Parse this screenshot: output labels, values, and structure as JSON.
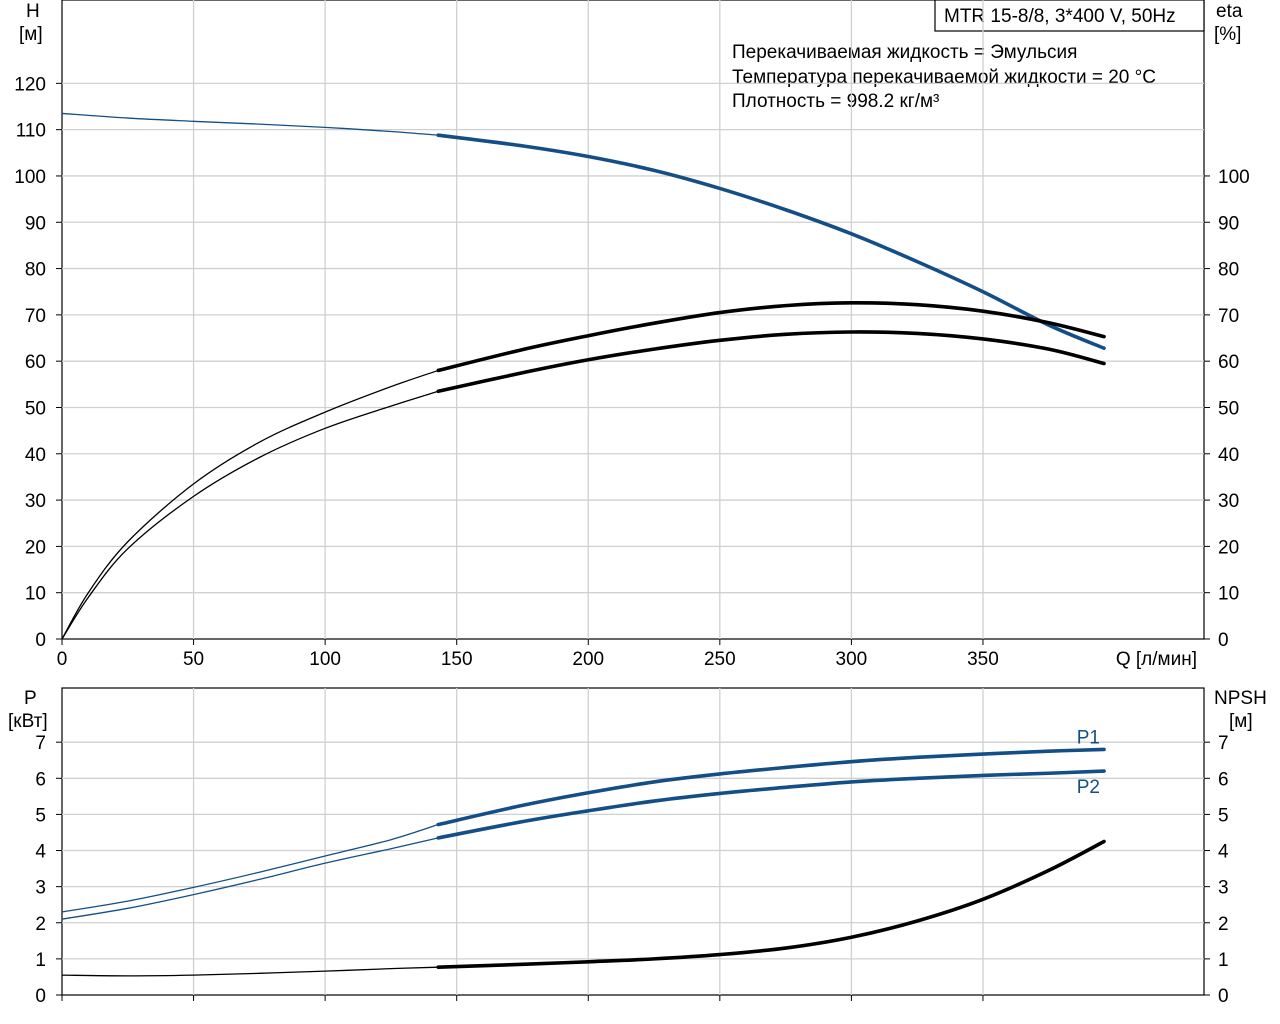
{
  "header": {
    "title": "MTR 15-8/8, 3*400 V, 50Hz",
    "info": [
      "Перекачиваемая жидкость = Эмульсия",
      "Температура перекачиваемой жидкости = 20 °C",
      "Плотность = 998.2 кг/м³"
    ]
  },
  "colors": {
    "blue": "#134f86",
    "black": "#000000",
    "grid": "#d0d0d0"
  },
  "chart_data": [
    {
      "type": "line",
      "xlabel": "Q [л/мин]",
      "ylabel_left": [
        "H",
        "[м]"
      ],
      "ylabel_right": [
        "eta",
        "[%]"
      ],
      "xlim": [
        0,
        434
      ],
      "ylim_left": [
        0,
        138
      ],
      "ylim_right": [
        0,
        138
      ],
      "x_ticks": [
        0,
        50,
        100,
        150,
        200,
        250,
        300,
        350
      ],
      "y_ticks_left": [
        0,
        10,
        20,
        30,
        40,
        50,
        60,
        70,
        80,
        90,
        100,
        110,
        120
      ],
      "y_ticks_right": [
        0,
        10,
        20,
        30,
        40,
        50,
        60,
        70,
        80,
        90,
        100
      ],
      "grid": true,
      "series": [
        {
          "color": "#134f86",
          "axis": "left",
          "operating_range_start": 143,
          "points": [
            [
              0,
              113.5
            ],
            [
              25,
              112.5
            ],
            [
              50,
              111.8
            ],
            [
              75,
              111.2
            ],
            [
              100,
              110.5
            ],
            [
              125,
              109.6
            ],
            [
              143,
              108.8
            ],
            [
              175,
              106.5
            ],
            [
              200,
              104.2
            ],
            [
              225,
              101.2
            ],
            [
              250,
              97.3
            ],
            [
              275,
              92.7
            ],
            [
              300,
              87.5
            ],
            [
              325,
              81.5
            ],
            [
              350,
              75
            ],
            [
              375,
              67.8
            ],
            [
              396,
              62.8
            ]
          ]
        },
        {
          "color": "#000000",
          "axis": "right",
          "operating_range_start": 143,
          "points": [
            [
              0,
              0
            ],
            [
              10,
              10
            ],
            [
              25,
              21
            ],
            [
              50,
              33.5
            ],
            [
              75,
              42.5
            ],
            [
              100,
              49
            ],
            [
              125,
              54.5
            ],
            [
              143,
              58
            ],
            [
              175,
              62.5
            ],
            [
              200,
              65.5
            ],
            [
              225,
              68.2
            ],
            [
              250,
              70.5
            ],
            [
              275,
              72
            ],
            [
              300,
              72.6
            ],
            [
              325,
              72.2
            ],
            [
              350,
              70.8
            ],
            [
              375,
              68.3
            ],
            [
              396,
              65.3
            ]
          ]
        },
        {
          "color": "#000000",
          "axis": "right",
          "operating_range_start": 143,
          "points": [
            [
              0,
              0
            ],
            [
              10,
              9
            ],
            [
              25,
              19.5
            ],
            [
              50,
              30.8
            ],
            [
              75,
              39.2
            ],
            [
              100,
              45.5
            ],
            [
              125,
              50.3
            ],
            [
              143,
              53.5
            ],
            [
              175,
              57.5
            ],
            [
              200,
              60.3
            ],
            [
              225,
              62.6
            ],
            [
              250,
              64.5
            ],
            [
              275,
              65.8
            ],
            [
              300,
              66.3
            ],
            [
              325,
              66
            ],
            [
              350,
              64.8
            ],
            [
              375,
              62.6
            ],
            [
              396,
              59.5
            ]
          ]
        }
      ]
    },
    {
      "type": "line",
      "xlabel": "",
      "ylabel_left": [
        "P",
        "[кВт]"
      ],
      "ylabel_right": [
        "NPSH",
        "[м]"
      ],
      "xlim": [
        0,
        434
      ],
      "ylim_left": [
        0,
        8.5
      ],
      "ylim_right": [
        0,
        8.5
      ],
      "y_ticks_left": [
        0,
        1,
        2,
        3,
        4,
        5,
        6,
        7
      ],
      "y_ticks_right": [
        0,
        1,
        2,
        3,
        4,
        5,
        6,
        7
      ],
      "grid": true,
      "series": [
        {
          "name": "P1",
          "color": "#134f86",
          "axis": "left",
          "operating_range_start": 143,
          "points": [
            [
              0,
              2.3
            ],
            [
              25,
              2.6
            ],
            [
              50,
              2.98
            ],
            [
              75,
              3.4
            ],
            [
              100,
              3.85
            ],
            [
              125,
              4.3
            ],
            [
              143,
              4.72
            ],
            [
              175,
              5.25
            ],
            [
              200,
              5.6
            ],
            [
              225,
              5.9
            ],
            [
              250,
              6.12
            ],
            [
              275,
              6.3
            ],
            [
              300,
              6.46
            ],
            [
              325,
              6.58
            ],
            [
              350,
              6.67
            ],
            [
              375,
              6.75
            ],
            [
              396,
              6.8
            ]
          ]
        },
        {
          "name": "P2",
          "color": "#134f86",
          "axis": "left",
          "operating_range_start": 143,
          "points": [
            [
              0,
              2.1
            ],
            [
              25,
              2.4
            ],
            [
              50,
              2.78
            ],
            [
              75,
              3.2
            ],
            [
              100,
              3.65
            ],
            [
              125,
              4.05
            ],
            [
              143,
              4.35
            ],
            [
              175,
              4.8
            ],
            [
              200,
              5.1
            ],
            [
              225,
              5.37
            ],
            [
              250,
              5.58
            ],
            [
              275,
              5.75
            ],
            [
              300,
              5.9
            ],
            [
              325,
              6
            ],
            [
              350,
              6.08
            ],
            [
              375,
              6.14
            ],
            [
              396,
              6.2
            ]
          ]
        },
        {
          "color": "#000000",
          "axis": "right",
          "operating_range_start": 143,
          "points": [
            [
              0,
              0.55
            ],
            [
              25,
              0.53
            ],
            [
              50,
              0.55
            ],
            [
              75,
              0.6
            ],
            [
              100,
              0.66
            ],
            [
              125,
              0.73
            ],
            [
              143,
              0.77
            ],
            [
              175,
              0.85
            ],
            [
              200,
              0.92
            ],
            [
              225,
              1.0
            ],
            [
              250,
              1.12
            ],
            [
              275,
              1.3
            ],
            [
              300,
              1.6
            ],
            [
              325,
              2.05
            ],
            [
              350,
              2.65
            ],
            [
              375,
              3.45
            ],
            [
              396,
              4.25
            ]
          ]
        }
      ]
    }
  ]
}
